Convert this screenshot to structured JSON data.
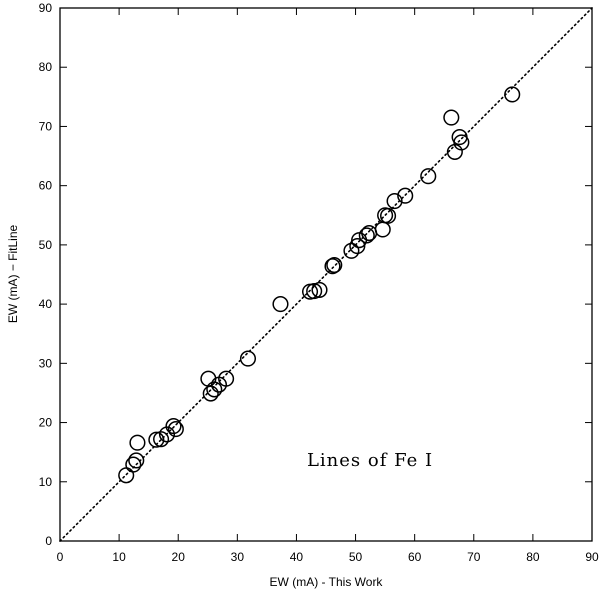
{
  "chart_data": {
    "type": "scatter",
    "xlabel": "EW (mA) - This Work",
    "ylabel": "EW (mA)  − FitLine",
    "annotation": "Lines of Fe I",
    "xlim": [
      0,
      90
    ],
    "ylim": [
      0,
      90
    ],
    "xticks": [
      0,
      10,
      20,
      30,
      40,
      50,
      60,
      70,
      80,
      90
    ],
    "yticks": [
      0,
      10,
      20,
      30,
      40,
      50,
      60,
      70,
      80,
      90
    ],
    "grid": false,
    "reference_line": {
      "style": "dotted",
      "from": [
        0,
        0
      ],
      "to": [
        90,
        90
      ]
    },
    "series": [
      {
        "marker": "open-circle",
        "points": [
          [
            11.2,
            11.1
          ],
          [
            12.4,
            12.9
          ],
          [
            12.9,
            13.6
          ],
          [
            13.1,
            16.6
          ],
          [
            16.3,
            17.1
          ],
          [
            17.1,
            17.2
          ],
          [
            18.1,
            18.0
          ],
          [
            19.2,
            19.4
          ],
          [
            19.6,
            18.9
          ],
          [
            25.1,
            27.4
          ],
          [
            25.5,
            24.9
          ],
          [
            26.1,
            25.6
          ],
          [
            26.9,
            26.4
          ],
          [
            28.1,
            27.4
          ],
          [
            31.8,
            30.8
          ],
          [
            37.3,
            40.0
          ],
          [
            42.3,
            42.1
          ],
          [
            43.0,
            42.2
          ],
          [
            43.9,
            42.4
          ],
          [
            46.1,
            46.4
          ],
          [
            46.4,
            46.6
          ],
          [
            49.3,
            49.0
          ],
          [
            50.3,
            49.8
          ],
          [
            50.6,
            50.8
          ],
          [
            51.9,
            51.6
          ],
          [
            52.3,
            52.0
          ],
          [
            54.6,
            52.6
          ],
          [
            55.0,
            55.0
          ],
          [
            55.5,
            54.9
          ],
          [
            56.6,
            57.4
          ],
          [
            58.4,
            58.3
          ],
          [
            62.3,
            61.6
          ],
          [
            66.2,
            71.5
          ],
          [
            66.8,
            65.7
          ],
          [
            67.6,
            68.2
          ],
          [
            67.9,
            67.3
          ],
          [
            76.5,
            75.4
          ]
        ]
      }
    ]
  }
}
